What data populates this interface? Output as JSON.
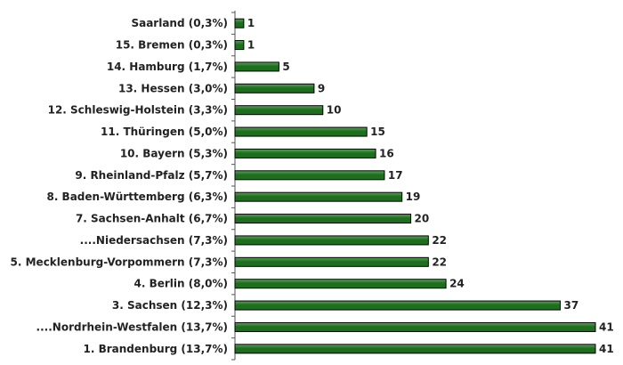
{
  "chart_data": {
    "type": "bar",
    "orientation": "horizontal",
    "categories": [
      "Saarland (0,3%)",
      "15. Bremen (0,3%)",
      "14. Hamburg (1,7%)",
      "13. Hessen (3,0%)",
      "12. Schleswig-Holstein (3,3%)",
      "11. Thüringen (5,0%)",
      "10. Bayern (5,3%)",
      "9. Rheinland-Pfalz (5,7%)",
      "8. Baden-Württemberg (6,3%)",
      "7. Sachsen-Anhalt (6,7%)",
      "....Niedersachsen (7,3%)",
      "5. Mecklenburg-Vorpommern (7,3%)",
      "4. Berlin (8,0%)",
      "3. Sachsen (12,3%)",
      "....Nordrhein-Westfalen (13,7%)",
      "1. Brandenburg (13,7%)"
    ],
    "values": [
      1,
      1,
      5,
      9,
      10,
      15,
      16,
      17,
      19,
      20,
      22,
      22,
      24,
      37,
      41,
      41
    ],
    "title": "",
    "xlabel": "",
    "ylabel": "",
    "xlim": [
      0,
      41
    ],
    "grid": false,
    "legend": "none",
    "colors": {
      "bar_fill": "#1f6e1f",
      "bar_highlight": "#5aa55a",
      "bar_stroke": "#000000",
      "axis": "#555555",
      "text": "#222222"
    }
  }
}
